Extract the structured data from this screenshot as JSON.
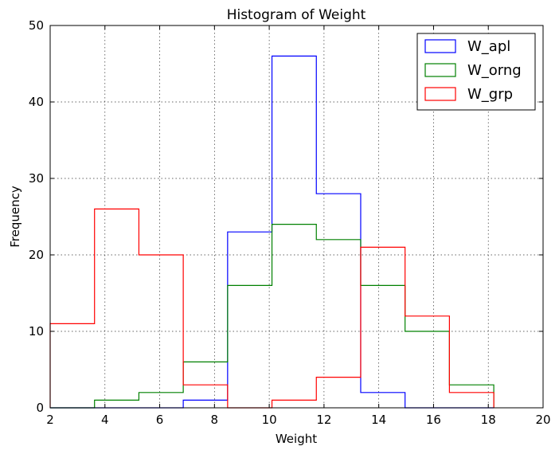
{
  "chart_data": {
    "type": "histogram",
    "title": "Histogram of Weight",
    "xlabel": "Weight",
    "ylabel": "Frequency",
    "xlim": [
      2,
      20
    ],
    "ylim": [
      0,
      50
    ],
    "xticks": [
      "2",
      "4",
      "6",
      "8",
      "10",
      "12",
      "14",
      "16",
      "18",
      "20"
    ],
    "yticks": [
      "0",
      "10",
      "20",
      "30",
      "40",
      "50"
    ],
    "grid": true,
    "legend_position": "top-right",
    "bin_edges": [
      2.0,
      3.62,
      5.24,
      6.86,
      8.48,
      10.1,
      11.72,
      13.34,
      14.96,
      16.58,
      18.2
    ],
    "series": [
      {
        "name": "W_apl",
        "color": "#0000ff",
        "values": [
          0,
          0,
          0,
          1,
          23,
          46,
          28,
          2,
          0,
          0
        ]
      },
      {
        "name": "W_orng",
        "color": "#008000",
        "values": [
          0,
          1,
          2,
          6,
          16,
          24,
          22,
          16,
          10,
          3
        ]
      },
      {
        "name": "W_grp",
        "color": "#ff0000",
        "values": [
          11,
          26,
          20,
          3,
          0,
          1,
          4,
          21,
          12,
          2
        ]
      }
    ]
  }
}
